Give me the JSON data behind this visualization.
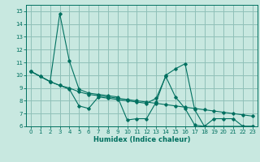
{
  "xlabel": "Humidex (Indice chaleur)",
  "bg_color": "#c8e8e0",
  "grid_color": "#90c0b8",
  "line_color": "#007060",
  "xlim": [
    -0.5,
    23.5
  ],
  "ylim": [
    6,
    15.5
  ],
  "xticks": [
    0,
    1,
    2,
    3,
    4,
    5,
    6,
    7,
    8,
    9,
    10,
    11,
    12,
    13,
    14,
    15,
    16,
    17,
    18,
    19,
    20,
    21,
    22,
    23
  ],
  "yticks": [
    6,
    7,
    8,
    9,
    10,
    11,
    12,
    13,
    14,
    15
  ],
  "series1_x": [
    0,
    1,
    2,
    3,
    4,
    5,
    6,
    7,
    8,
    9,
    10,
    11,
    12,
    13,
    14,
    15,
    16,
    17,
    18,
    22,
    23
  ],
  "series1_y": [
    10.3,
    9.9,
    9.5,
    14.8,
    11.1,
    8.9,
    8.6,
    8.5,
    8.4,
    8.3,
    6.5,
    6.6,
    6.6,
    7.9,
    10.0,
    10.5,
    10.9,
    7.3,
    6.0,
    6.0,
    6.0
  ],
  "series2_x": [
    0,
    1,
    2,
    3,
    4,
    5,
    6,
    7,
    8,
    9,
    10,
    11,
    12,
    13,
    14,
    15,
    16,
    17,
    18,
    19,
    20,
    21,
    22,
    23
  ],
  "series2_y": [
    10.3,
    9.9,
    9.5,
    9.2,
    9.0,
    8.7,
    8.5,
    8.4,
    8.3,
    8.2,
    8.1,
    8.0,
    7.9,
    7.8,
    7.7,
    7.6,
    7.5,
    7.4,
    7.3,
    7.2,
    7.1,
    7.0,
    6.9,
    6.8
  ],
  "series3_x": [
    0,
    2,
    3,
    4,
    5,
    6,
    7,
    8,
    9,
    10,
    11,
    12,
    13,
    14,
    15,
    16,
    17,
    18,
    19,
    20,
    21,
    22,
    23
  ],
  "series3_y": [
    10.3,
    9.5,
    9.2,
    8.9,
    7.6,
    7.4,
    8.3,
    8.2,
    8.1,
    8.0,
    7.9,
    7.8,
    8.2,
    9.9,
    8.3,
    7.4,
    6.1,
    6.0,
    6.6,
    6.6,
    6.6,
    6.0,
    6.0
  ]
}
